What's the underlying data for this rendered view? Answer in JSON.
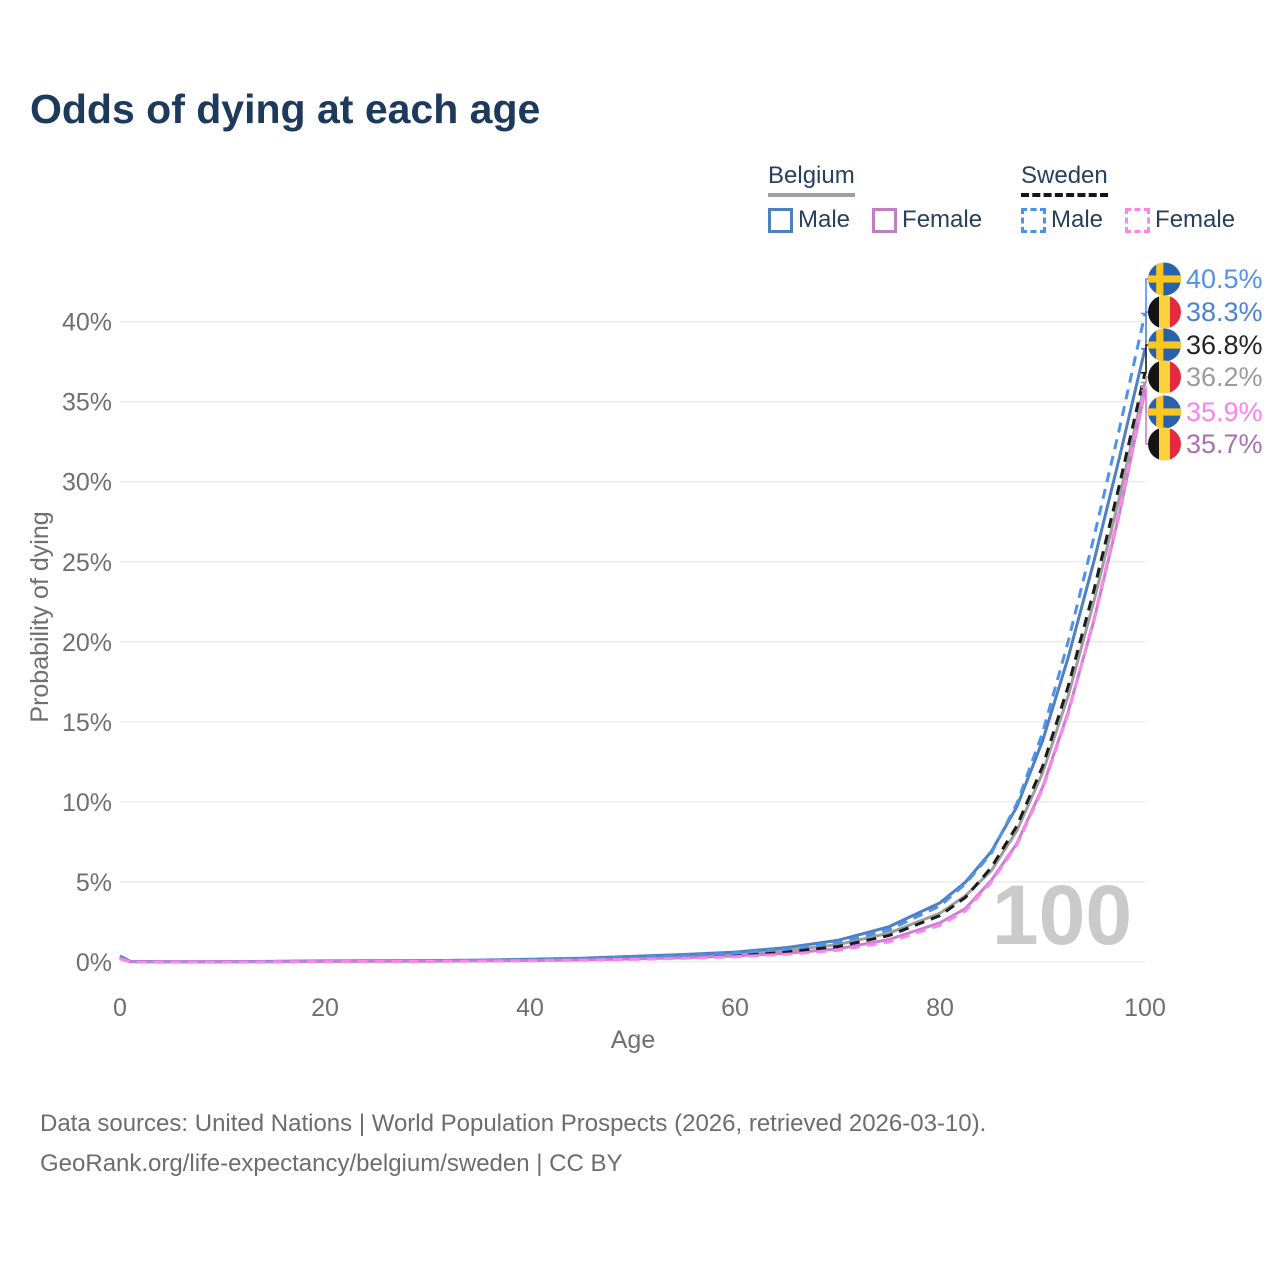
{
  "title": "Odds of dying at each age",
  "legend": {
    "groups": [
      {
        "country": "Belgium",
        "line_style": "solid",
        "underline_color": "#9f9f9f",
        "items": [
          {
            "label": "Male",
            "color": "#4e7fc0"
          },
          {
            "label": "Female",
            "color": "#c07ec2"
          }
        ]
      },
      {
        "country": "Sweden",
        "line_style": "dashed",
        "underline_color": "#161616",
        "items": [
          {
            "label": "Male",
            "color": "#4a90f0"
          },
          {
            "label": "Female",
            "color": "#fc86e6"
          }
        ]
      }
    ]
  },
  "watermark": "100",
  "footer": {
    "line1": "Data sources: United Nations | World Population Prospects (2026, retrieved 2026-03-10).",
    "line2": "GeoRank.org/life-expectancy/belgium/sweden | CC BY"
  },
  "chart_data": {
    "type": "line",
    "title": "Odds of dying at each age",
    "xlabel": "Age",
    "ylabel": "Probability of dying",
    "xlim": [
      0,
      100
    ],
    "ylim_percent": [
      0,
      40
    ],
    "grid": "horizontal-only",
    "x_ticks": [
      0,
      20,
      40,
      60,
      80,
      100
    ],
    "y_ticks_percent": [
      0,
      5,
      10,
      15,
      20,
      25,
      30,
      35,
      40
    ],
    "y_tick_suffix": "%",
    "x": [
      0,
      1,
      5,
      10,
      15,
      20,
      25,
      30,
      35,
      40,
      45,
      50,
      55,
      60,
      65,
      70,
      75,
      80,
      82.5,
      85,
      87.5,
      90,
      92.5,
      95,
      97.5,
      100
    ],
    "series": [
      {
        "name": "Belgium Total",
        "country": "Belgium",
        "sex": "Total",
        "color": "#9e9e9e",
        "dash": false,
        "values": [
          0.33,
          0.025,
          0.01,
          0.012,
          0.03,
          0.05,
          0.06,
          0.07,
          0.09,
          0.13,
          0.18,
          0.26,
          0.37,
          0.5,
          0.72,
          1.08,
          1.8,
          3.05,
          4.15,
          5.7,
          8.2,
          11.8,
          16.6,
          22.5,
          29.0,
          36.2
        ]
      },
      {
        "name": "Belgium Male",
        "country": "Belgium",
        "sex": "Male",
        "color": "#4e7fc0",
        "dash": false,
        "values": [
          0.38,
          0.03,
          0.012,
          0.015,
          0.04,
          0.07,
          0.08,
          0.09,
          0.12,
          0.17,
          0.24,
          0.35,
          0.47,
          0.62,
          0.9,
          1.35,
          2.2,
          3.7,
          5.0,
          6.9,
          9.7,
          13.8,
          19.0,
          25.0,
          31.5,
          38.3
        ]
      },
      {
        "name": "Belgium Female",
        "country": "Belgium",
        "sex": "Female",
        "color": "#c97fd4",
        "dash": false,
        "values": [
          0.28,
          0.02,
          0.008,
          0.01,
          0.02,
          0.03,
          0.04,
          0.05,
          0.07,
          0.09,
          0.13,
          0.19,
          0.27,
          0.38,
          0.55,
          0.82,
          1.4,
          2.45,
          3.35,
          5.1,
          7.4,
          10.9,
          15.6,
          21.3,
          28.0,
          35.7
        ]
      },
      {
        "name": "Sweden Total",
        "country": "Sweden",
        "sex": "Total",
        "color": "#1c1c1c",
        "dash": true,
        "values": [
          0.22,
          0.018,
          0.008,
          0.01,
          0.022,
          0.04,
          0.05,
          0.055,
          0.075,
          0.1,
          0.15,
          0.21,
          0.3,
          0.44,
          0.63,
          0.96,
          1.65,
          2.9,
          4.05,
          5.9,
          8.5,
          12.2,
          17.2,
          23.2,
          29.8,
          36.8
        ]
      },
      {
        "name": "Sweden Male",
        "country": "Sweden",
        "sex": "Male",
        "color": "#4e92ec",
        "dash": true,
        "values": [
          0.25,
          0.02,
          0.01,
          0.01,
          0.03,
          0.06,
          0.07,
          0.08,
          0.1,
          0.14,
          0.2,
          0.28,
          0.4,
          0.55,
          0.8,
          1.2,
          2.0,
          3.5,
          4.9,
          6.8,
          9.9,
          14.3,
          20.0,
          26.5,
          33.3,
          40.5
        ]
      },
      {
        "name": "Sweden Female",
        "country": "Sweden",
        "sex": "Female",
        "color": "#ff85e8",
        "dash": true,
        "values": [
          0.2,
          0.015,
          0.006,
          0.008,
          0.015,
          0.025,
          0.03,
          0.04,
          0.055,
          0.08,
          0.11,
          0.16,
          0.23,
          0.33,
          0.48,
          0.73,
          1.25,
          2.3,
          3.2,
          5.0,
          7.3,
          10.8,
          15.5,
          21.4,
          28.2,
          35.9
        ]
      }
    ],
    "end_labels": [
      {
        "flag": "sweden",
        "text": "40.5%",
        "color": "#5591e6",
        "series": "Sweden Male"
      },
      {
        "flag": "belgium",
        "text": "38.3%",
        "color": "#4b82d3",
        "series": "Belgium Male"
      },
      {
        "flag": "sweden",
        "text": "36.8%",
        "color": "#242424",
        "series": "Sweden Total"
      },
      {
        "flag": "belgium",
        "text": "36.2%",
        "color": "#9b9b9b",
        "series": "Belgium Total"
      },
      {
        "flag": "sweden",
        "text": "35.9%",
        "color": "#f884f0",
        "series": "Sweden Female"
      },
      {
        "flag": "belgium",
        "text": "35.7%",
        "color": "#aa6fb2",
        "series": "Belgium Female"
      }
    ],
    "flag_colors": {
      "sweden_blue": "#2a61ab",
      "sweden_yellow": "#fdc520",
      "belgium_black": "#141414",
      "belgium_yellow": "#f9d23c",
      "belgium_red": "#e5293e"
    }
  }
}
